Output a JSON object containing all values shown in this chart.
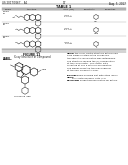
{
  "bg": "#ffffff",
  "text_dark": "#1a1a1a",
  "text_gray": "#555555",
  "line_dark": "#333333",
  "line_gray": "#aaaaaa",
  "header_left": "US 2017/0267... A1",
  "header_right": "Aug. 5, 2017",
  "page_num": "17",
  "table_title": "TABLE 1",
  "section_bottom_title": "FIGURE 11",
  "section_bottom_sub": "X-ray Structure of Compound"
}
